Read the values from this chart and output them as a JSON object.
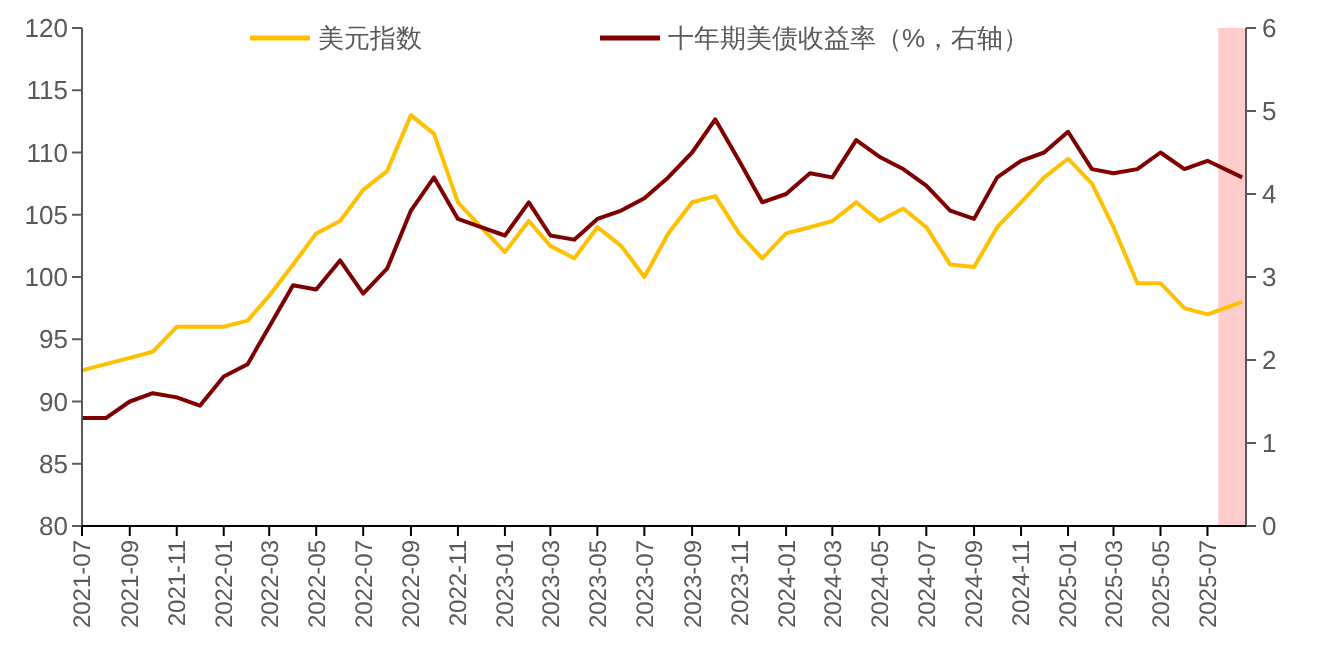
{
  "chart_data": {
    "type": "line",
    "x": [
      "2021-07-01",
      "2021-08-01",
      "2021-09-01",
      "2021-10-01",
      "2021-11-01",
      "2021-12-01",
      "2022-01-01",
      "2022-02-01",
      "2022-03-01",
      "2022-04-01",
      "2022-05-01",
      "2022-06-01",
      "2022-07-01",
      "2022-08-01",
      "2022-09-01",
      "2022-10-01",
      "2022-11-01",
      "2022-12-01",
      "2023-01-01",
      "2023-02-01",
      "2023-03-01",
      "2023-04-01",
      "2023-05-01",
      "2023-06-01",
      "2023-07-01",
      "2023-08-01",
      "2023-09-01",
      "2023-10-01",
      "2023-11-01",
      "2023-12-01",
      "2024-01-01",
      "2024-02-01",
      "2024-03-01",
      "2024-04-01",
      "2024-05-01",
      "2024-06-01",
      "2024-07-01",
      "2024-08-01",
      "2024-09-01",
      "2024-10-01",
      "2024-11-01",
      "2024-12-01",
      "2025-01-01",
      "2025-02-01",
      "2025-03-01",
      "2025-04-01",
      "2025-05-01",
      "2025-06-01",
      "2025-07-01",
      "2025-08-15"
    ],
    "series": [
      {
        "name": "美元指数",
        "color": "#ffc000",
        "values": [
          92.5,
          93,
          93.5,
          94,
          96,
          96,
          96,
          96.5,
          98.5,
          101,
          103.5,
          104.5,
          107,
          108.5,
          113,
          111.5,
          106,
          104,
          102,
          104.5,
          102.5,
          101.5,
          104,
          102.5,
          100,
          103.5,
          106,
          106.5,
          103.5,
          101.5,
          103.5,
          104,
          104.5,
          106,
          104.5,
          105.5,
          104,
          101,
          100.8,
          104,
          106,
          108,
          109.5,
          107.5,
          104,
          99.5,
          99.5,
          97.5,
          97,
          98
        ]
      },
      {
        "name": "十年期美债收益率（%，右轴）",
        "color": "#7f0000",
        "axis": "y2",
        "values": [
          1.3,
          1.3,
          1.5,
          1.6,
          1.55,
          1.45,
          1.8,
          1.95,
          2.4,
          2.9,
          2.85,
          3.2,
          2.8,
          3.1,
          3.8,
          4.2,
          3.7,
          3.6,
          3.5,
          3.9,
          3.5,
          3.45,
          3.7,
          3.8,
          3.95,
          4.2,
          4.5,
          4.9,
          4.4,
          3.9,
          4.0,
          4.25,
          4.2,
          4.65,
          4.45,
          4.3,
          4.1,
          3.8,
          3.7,
          4.2,
          4.4,
          4.5,
          4.75,
          4.3,
          4.25,
          4.3,
          4.5,
          4.3,
          4.4,
          4.2
        ]
      }
    ],
    "xlim": [
      "2021-07-01",
      "2025-08-20"
    ],
    "xticks": [
      "2021-07",
      "2021-09",
      "2021-11",
      "2022-01",
      "2022-03",
      "2022-05",
      "2022-07",
      "2022-09",
      "2022-11",
      "2023-01",
      "2023-03",
      "2023-05",
      "2023-07",
      "2023-09",
      "2023-11",
      "2024-01",
      "2024-03",
      "2024-05",
      "2024-07",
      "2024-09",
      "2024-11",
      "2025-01",
      "2025-03",
      "2025-05",
      "2025-07"
    ],
    "ylim": [
      80,
      120
    ],
    "yticks": [
      80,
      85,
      90,
      95,
      100,
      105,
      110,
      115,
      120
    ],
    "y2lim": [
      0,
      6
    ],
    "y2ticks": [
      0,
      1,
      2,
      3,
      4,
      5,
      6
    ],
    "bands": [
      {
        "axis": "x",
        "from": "2025-07-15",
        "to": "2025-08-20",
        "color": "#ffcccc"
      }
    ],
    "legend": "top"
  }
}
